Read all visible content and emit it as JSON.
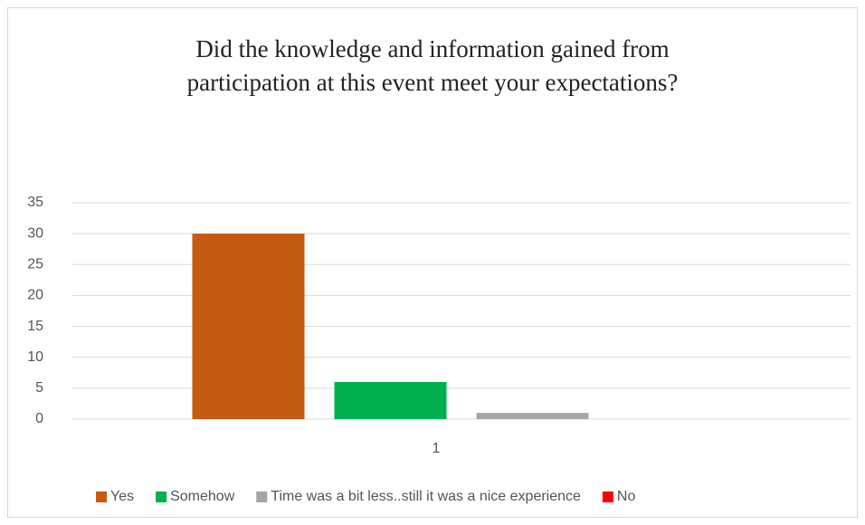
{
  "chart_data": {
    "type": "bar",
    "title": "Did the knowledge and information gained from participation at this event meet your expectations?",
    "categories": [
      "1"
    ],
    "series": [
      {
        "name": "Yes",
        "color": "#c55a11",
        "values": [
          30
        ]
      },
      {
        "name": "Somehow",
        "color": "#00b050",
        "values": [
          6
        ]
      },
      {
        "name": "Time was a bit less..still it was a nice experience",
        "color": "#a5a5a5",
        "values": [
          1
        ]
      },
      {
        "name": "No",
        "color": "#ff0000",
        "values": [
          0
        ]
      }
    ],
    "ylim": [
      0,
      35
    ],
    "yticks": [
      0,
      5,
      10,
      15,
      20,
      25,
      30,
      35
    ],
    "grid": true,
    "legend": "bottom"
  }
}
